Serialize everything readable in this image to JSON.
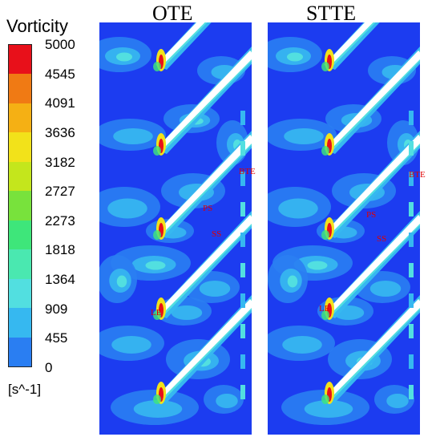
{
  "legend": {
    "title": "Vorticity",
    "unit": "[s^-1]",
    "ticks": [
      "5000",
      "4545",
      "4091",
      "3636",
      "3182",
      "2727",
      "2273",
      "1818",
      "1364",
      "909",
      "455",
      "0"
    ],
    "colors": [
      "#e8101a",
      "#f07a14",
      "#f5b014",
      "#f2e21a",
      "#c4e61c",
      "#78e23c",
      "#3ee67a",
      "#4ae8b0",
      "#52dfe0",
      "#36b8f0",
      "#2a7ef2",
      "#1c3cf0"
    ]
  },
  "panels": [
    {
      "title": "OTE",
      "annotations": {
        "bte": "BTE",
        "ps": "PS",
        "ss": "SS",
        "le": "LE"
      }
    },
    {
      "title": "STTE",
      "annotations": {
        "bte": "BTE",
        "ps": "PS",
        "ss": "SS",
        "le": "LE"
      }
    }
  ]
}
